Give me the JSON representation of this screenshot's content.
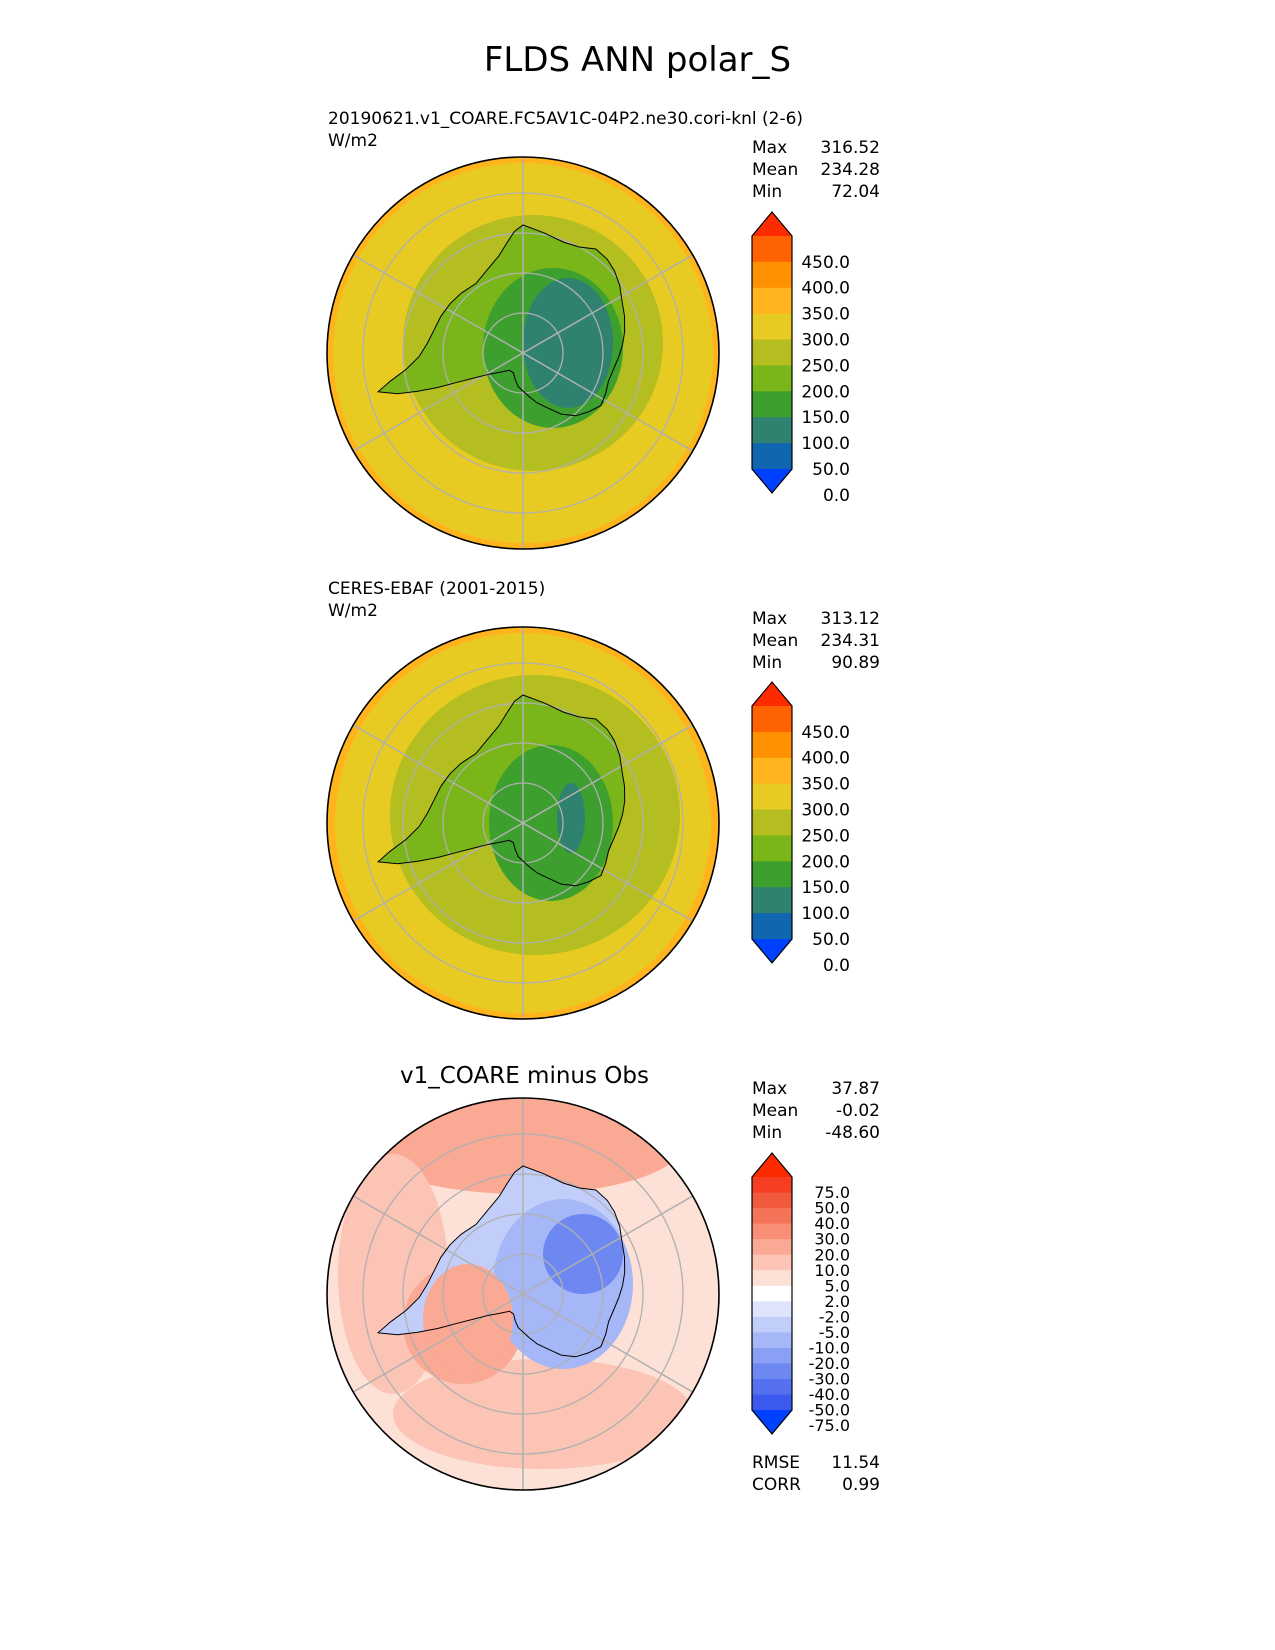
{
  "title": "FLDS ANN polar_S",
  "panels": [
    {
      "id": "test",
      "label": "20190621.v1_COARE.FC5AV1C-04P2.ne30.cori-knl (2-6)",
      "units": "W/m2",
      "stats": [
        {
          "name": "Max",
          "value": "316.52"
        },
        {
          "name": "Mean",
          "value": "234.28"
        },
        {
          "name": "Min",
          "value": "72.04"
        }
      ],
      "colorbar": {
        "levels": [
          "450.0",
          "400.0",
          "350.0",
          "300.0",
          "250.0",
          "200.0",
          "150.0",
          "100.0",
          "50.0",
          "0.0"
        ],
        "colors": [
          "#ff2b00",
          "#ff6200",
          "#ff9100",
          "#ffb41d",
          "#e8cb22",
          "#b4be20",
          "#7ab51a",
          "#3d9f2e",
          "#2f8270",
          "#1166b0",
          "#0041ff"
        ]
      }
    },
    {
      "id": "reference",
      "label": "CERES-EBAF (2001-2015)",
      "units": "W/m2",
      "stats": [
        {
          "name": "Max",
          "value": "313.12"
        },
        {
          "name": "Mean",
          "value": "234.31"
        },
        {
          "name": "Min",
          "value": "90.89"
        }
      ],
      "colorbar": {
        "levels": [
          "450.0",
          "400.0",
          "350.0",
          "300.0",
          "250.0",
          "200.0",
          "150.0",
          "100.0",
          "50.0",
          "0.0"
        ],
        "colors": [
          "#ff2b00",
          "#ff6200",
          "#ff9100",
          "#ffb41d",
          "#e8cb22",
          "#b4be20",
          "#7ab51a",
          "#3d9f2e",
          "#2f8270",
          "#1166b0",
          "#0041ff"
        ]
      }
    },
    {
      "id": "diff",
      "label": "v1_COARE minus Obs",
      "stats": [
        {
          "name": "Max",
          "value": "37.87"
        },
        {
          "name": "Mean",
          "value": "-0.02"
        },
        {
          "name": "Min",
          "value": "-48.60"
        }
      ],
      "metrics": [
        {
          "name": "RMSE",
          "value": "11.54"
        },
        {
          "name": "CORR",
          "value": "0.99"
        }
      ],
      "colorbar": {
        "levels": [
          "75.0",
          "50.0",
          "40.0",
          "30.0",
          "20.0",
          "10.0",
          "5.0",
          "2.0",
          "-2.0",
          "-5.0",
          "-10.0",
          "-20.0",
          "-30.0",
          "-40.0",
          "-50.0",
          "-75.0"
        ],
        "colors": [
          "#ff2b00",
          "#f53e22",
          "#f25a3e",
          "#f57358",
          "#f88e76",
          "#faa994",
          "#fcc4b4",
          "#fde1d6",
          "#ffffff",
          "#dde4fc",
          "#c2cefa",
          "#a6b7f8",
          "#8aa0f5",
          "#6e88f2",
          "#5571ef",
          "#3c5aee",
          "#0041ff"
        ]
      }
    }
  ],
  "chart_data": [
    {
      "type": "heatmap",
      "projection": "south polar stereographic",
      "title": "20190621.v1_COARE.FC5AV1C-04P2.ne30.cori-knl (2-6)",
      "units": "W/m2",
      "contour_levels": [
        0,
        50,
        100,
        150,
        200,
        250,
        300,
        350,
        400,
        450
      ],
      "max": 316.52,
      "mean": 234.28,
      "min": 72.04,
      "pattern": "about 250-300 over the outer ocean rising to 300-350 at the northern edge; 200-250 near the coast; 100-200 over the continent with a 50-100 minimum over the East Antarctic plateau"
    },
    {
      "type": "heatmap",
      "projection": "south polar stereographic",
      "title": "CERES-EBAF (2001-2015)",
      "units": "W/m2",
      "contour_levels": [
        0,
        50,
        100,
        150,
        200,
        250,
        300,
        350,
        400,
        450
      ],
      "max": 313.12,
      "mean": 234.31,
      "min": 90.89,
      "pattern": "about 250-300 over the ocean with 300-350 at the outer edge; 200-250 around the coast; 150-200 over the continent with a small 100-150 core"
    },
    {
      "type": "heatmap",
      "projection": "south polar stereographic",
      "title": "v1_COARE minus Obs",
      "contour_levels": [
        -75,
        -50,
        -40,
        -30,
        -20,
        -10,
        -5,
        -2,
        2,
        5,
        10,
        20,
        30,
        40,
        50,
        75
      ],
      "max": 37.87,
      "mean": -0.02,
      "min": -48.6,
      "rmse": 11.54,
      "corr": 0.99,
      "pattern": "positive (reds) over the Southern Ocean and West Antarctica; negative (blues) over East Antarctica"
    }
  ]
}
